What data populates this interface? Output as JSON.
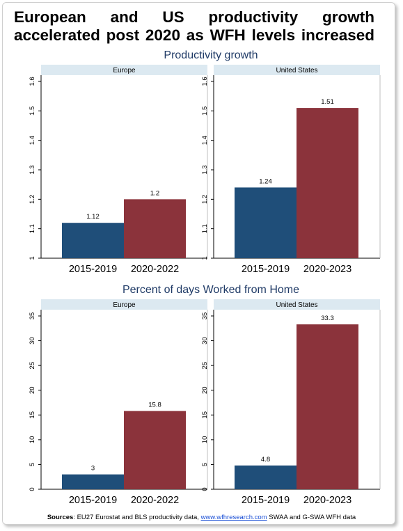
{
  "headline": "European and US productivity growth accelerated post 2020 as WFH levels increased",
  "source": {
    "label": "Sources",
    "text_before": ": EU27 Eurostat and BLS productivity data, ",
    "link": "www.wfhresearch.com",
    "text_after": " SWAA and G-SWA WFH data"
  },
  "colors": {
    "blue": "#1f4e79",
    "red": "#8b333b",
    "panel_header": "#dce9f1",
    "title": "#1f3a66"
  },
  "chart_data": [
    {
      "type": "bar",
      "title": "Productivity growth",
      "ylim": [
        1,
        1.6
      ],
      "yticks": [
        "1",
        "1.1",
        "1.2",
        "1.3",
        "1.4",
        "1.5",
        "1.6"
      ],
      "panels": [
        {
          "name": "Europe",
          "categories": [
            "2015-2019",
            "2020-2022"
          ],
          "values": [
            1.12,
            1.2
          ],
          "labels": [
            "1.12",
            "1.2"
          ]
        },
        {
          "name": "United States",
          "categories": [
            "2015-2019",
            "2020-2023"
          ],
          "values": [
            1.24,
            1.51
          ],
          "labels": [
            "1.24",
            "1.51"
          ]
        }
      ]
    },
    {
      "type": "bar",
      "title": "Percent of days Worked from Home",
      "ylim": [
        0,
        35
      ],
      "yticks": [
        "0",
        "5",
        "10",
        "15",
        "20",
        "25",
        "30",
        "35"
      ],
      "panels": [
        {
          "name": "Europe",
          "categories": [
            "2015-2019",
            "2020-2022"
          ],
          "values": [
            3,
            15.8
          ],
          "labels": [
            "3",
            "15.8"
          ]
        },
        {
          "name": "United States",
          "categories": [
            "2015-2019",
            "2020-2023"
          ],
          "values": [
            4.8,
            33.3
          ],
          "labels": [
            "4.8",
            "33.3"
          ]
        }
      ]
    }
  ]
}
